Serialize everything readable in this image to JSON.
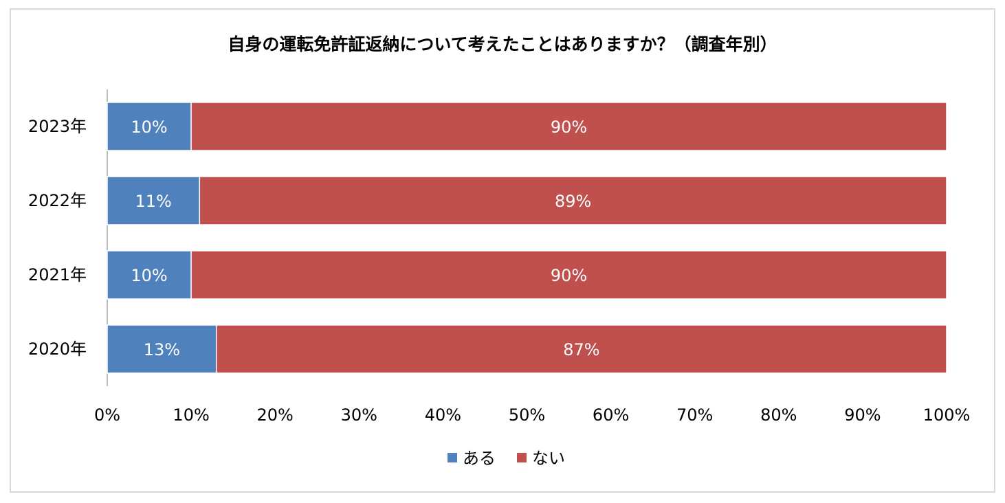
{
  "chart_data": {
    "type": "bar",
    "orientation": "horizontal",
    "stacked": "percent",
    "title": "自身の運転免許証返納について考えたことはありますか？（調査年別）",
    "categories": [
      "2023年",
      "2022年",
      "2021年",
      "2020年"
    ],
    "series": [
      {
        "name": "ある",
        "color": "#4f81bd",
        "values": [
          10,
          11,
          10,
          13
        ],
        "labels": [
          "10%",
          "11%",
          "10%",
          "13%"
        ]
      },
      {
        "name": "ない",
        "color": "#c0504d",
        "values": [
          90,
          89,
          90,
          87
        ],
        "labels": [
          "90%",
          "89%",
          "90%",
          "87%"
        ]
      }
    ],
    "xlim": [
      0,
      100
    ],
    "xticks": [
      0,
      10,
      20,
      30,
      40,
      50,
      60,
      70,
      80,
      90,
      100
    ],
    "xtick_labels": [
      "0%",
      "10%",
      "20%",
      "30%",
      "40%",
      "50%",
      "60%",
      "70%",
      "80%",
      "90%",
      "100%"
    ],
    "grid": false,
    "legend": "bottom"
  }
}
